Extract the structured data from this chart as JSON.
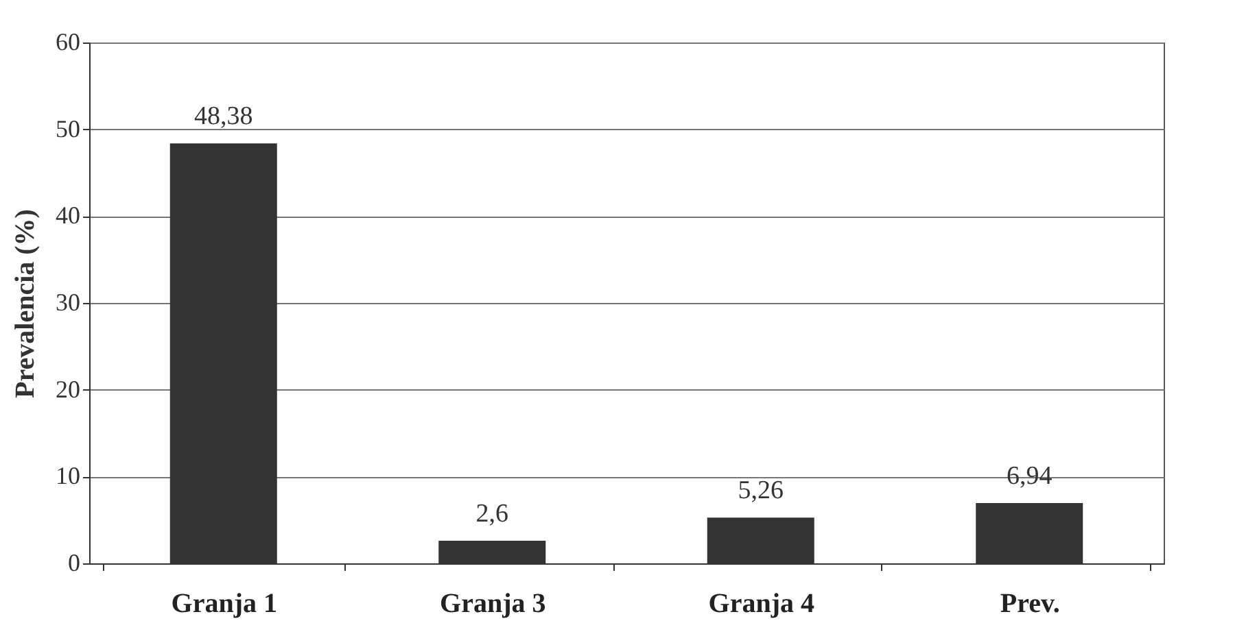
{
  "chart_data": {
    "type": "bar",
    "ylabel": "Prevalencia (%)",
    "categories": [
      "Granja 1",
      "Granja 3",
      "Granja 4",
      "Prev."
    ],
    "values": [
      48.38,
      2.6,
      5.26,
      6.94
    ],
    "value_labels": [
      "48,38",
      "2,6",
      "5,26",
      "6,94"
    ],
    "color": "#333333",
    "ylim": [
      0,
      60
    ],
    "yticks": [
      0,
      10,
      20,
      30,
      40,
      50,
      60
    ],
    "grid": "y"
  }
}
